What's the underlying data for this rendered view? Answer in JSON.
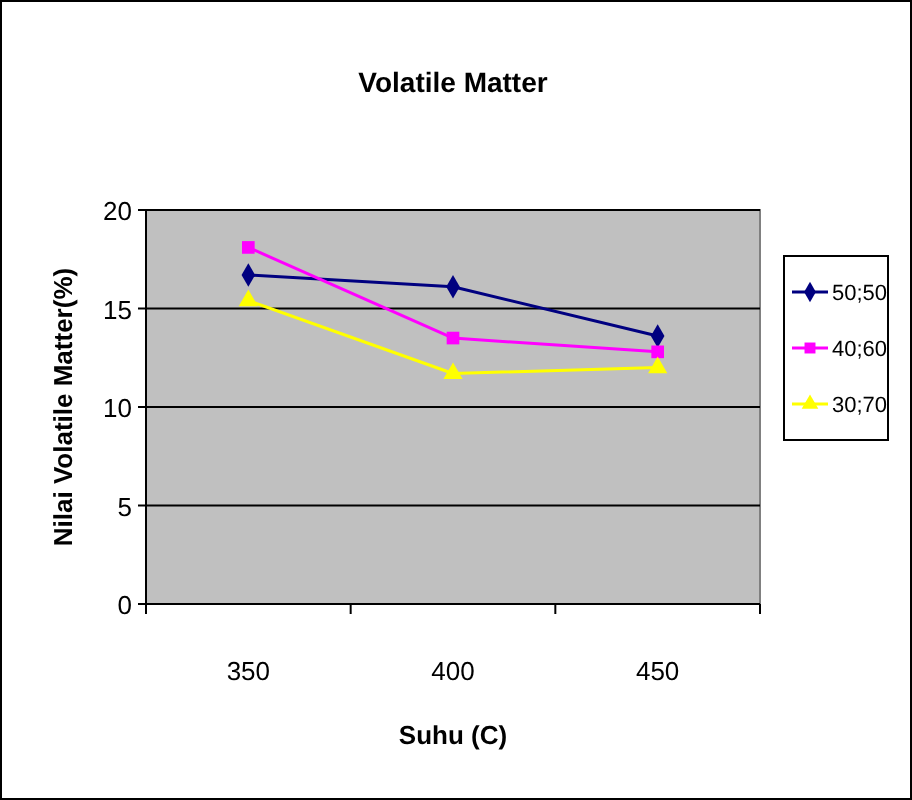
{
  "chart_data": {
    "type": "line",
    "title": "Volatile Matter",
    "xlabel": "Suhu (C)",
    "ylabel": "Nilai Volatile Matter(%)",
    "categories": [
      "350",
      "400",
      "450"
    ],
    "ylim": [
      0,
      20
    ],
    "yticks": [
      0,
      5,
      10,
      15,
      20
    ],
    "grid": "y",
    "legend": "right",
    "series": [
      {
        "name": "50;50",
        "color": "#000080",
        "marker": "diamond",
        "values": [
          16.7,
          16.1,
          13.6
        ]
      },
      {
        "name": "40;60",
        "color": "#ff00ff",
        "marker": "square",
        "values": [
          18.1,
          13.5,
          12.8
        ]
      },
      {
        "name": "30;70",
        "color": "#ffff00",
        "marker": "triangle",
        "values": [
          15.4,
          11.7,
          12.0
        ]
      }
    ]
  }
}
